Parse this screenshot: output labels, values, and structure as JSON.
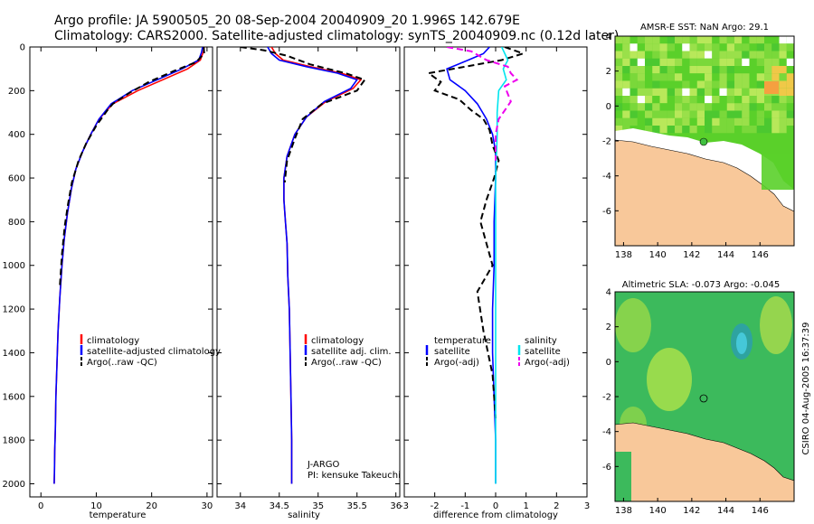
{
  "header": {
    "line1": "Argo profile: JA 5900505_20 08-Sep-2004 20040909_20 1.996S 142.679E",
    "line2": "Climatology: CARS2000. Satellite-adjusted climatology: synTS_20040909.nc (0.12d later)"
  },
  "side_label": "CSIRO 04-Aug-2005 16:37:39",
  "colors": {
    "climatology": "#ff0000",
    "satellite": "#0000ff",
    "argo": "#000000",
    "salinity_satellite": "#00e5ee",
    "salinity_argo": "#ee00ee",
    "land": "#f8c89a",
    "green": "#40c040"
  },
  "chart_data": [
    {
      "type": "line",
      "id": "temperature",
      "xlabel": "temperature",
      "ylabel": "",
      "xlim": [
        -2,
        31
      ],
      "ylim": [
        2060,
        0
      ],
      "xticks": [
        "0",
        "10",
        "20",
        "30"
      ],
      "xtick_values": [
        0,
        10,
        20,
        30
      ],
      "yticks": [
        "0",
        "200",
        "400",
        "600",
        "800",
        "1000",
        "1200",
        "1400",
        "1600",
        "1800",
        "2000"
      ],
      "ytick_values": [
        0,
        200,
        400,
        600,
        800,
        1000,
        1200,
        1400,
        1600,
        1800,
        2000
      ],
      "legend": [
        "climatology",
        "satellite-adjusted climatology",
        "Argo(..raw -QC)"
      ],
      "series": [
        {
          "name": "climatology",
          "style": "solid",
          "color": "#ff0000",
          "x": [
            29.5,
            29.3,
            28.8,
            26.5,
            22,
            17.5,
            13,
            10.5,
            9,
            7.5,
            6.3,
            5.5,
            4.8,
            4.2,
            3.8,
            3.4,
            3.1,
            2.9,
            2.7,
            2.6,
            2.5,
            2.45,
            2.4
          ],
          "y": [
            0,
            25,
            60,
            100,
            150,
            200,
            260,
            330,
            400,
            480,
            560,
            650,
            760,
            880,
            1000,
            1150,
            1300,
            1450,
            1600,
            1750,
            1850,
            1950,
            2000
          ]
        },
        {
          "name": "satellite-adjusted climatology",
          "style": "solid",
          "color": "#0000ff",
          "x": [
            29.2,
            29,
            28.5,
            25.5,
            21,
            16.5,
            12.7,
            10.5,
            9,
            7.5,
            6.3,
            5.5,
            4.8,
            4.2,
            3.8,
            3.4,
            3.1,
            2.9,
            2.7,
            2.6,
            2.5,
            2.45,
            2.4
          ],
          "y": [
            0,
            25,
            60,
            100,
            150,
            200,
            260,
            330,
            400,
            480,
            560,
            650,
            760,
            880,
            1000,
            1150,
            1300,
            1450,
            1600,
            1750,
            1850,
            1950,
            2000
          ]
        },
        {
          "name": "Argo(..raw -QC)",
          "style": "dashed",
          "color": "#000000",
          "x": [
            29.4,
            29.5,
            28,
            24,
            19.5,
            16,
            13,
            12,
            10,
            8.2,
            6.8,
            5.6,
            4.9,
            4.3,
            3.8,
            3.4
          ],
          "y": [
            0,
            30,
            70,
            110,
            160,
            210,
            260,
            290,
            360,
            440,
            520,
            620,
            720,
            820,
            950,
            1100
          ]
        }
      ]
    },
    {
      "type": "line",
      "id": "salinity",
      "xlabel": "salinity",
      "xlim": [
        33.7,
        36.05
      ],
      "ylim": [
        2060,
        0
      ],
      "xticks": [
        "34",
        "34.5",
        "35",
        "35.5",
        "36"
      ],
      "xtick_values": [
        34,
        34.5,
        35,
        35.5,
        36
      ],
      "legend": [
        "climatology",
        "satellite adj. clim.",
        "Argo(..raw -QC)"
      ],
      "annotations": [
        "J-ARGO",
        "PI: kensuke Takeuchi"
      ],
      "series": [
        {
          "name": "climatology",
          "style": "solid",
          "color": "#ff0000",
          "x": [
            34.4,
            34.45,
            34.55,
            34.9,
            35.3,
            35.55,
            35.45,
            35.1,
            34.85,
            34.7,
            34.6,
            34.56,
            34.56,
            34.58,
            34.6,
            34.61,
            34.63,
            34.64,
            34.65,
            34.66,
            34.66
          ],
          "y": [
            0,
            30,
            60,
            90,
            120,
            150,
            190,
            250,
            320,
            400,
            500,
            600,
            700,
            800,
            900,
            1050,
            1200,
            1400,
            1600,
            1800,
            2000
          ]
        },
        {
          "name": "satellite adj. clim.",
          "style": "solid",
          "color": "#0000ff",
          "x": [
            34.35,
            34.4,
            34.5,
            34.85,
            35.25,
            35.5,
            35.42,
            35.08,
            34.85,
            34.7,
            34.6,
            34.56,
            34.56,
            34.58,
            34.6,
            34.61,
            34.63,
            34.64,
            34.65,
            34.66,
            34.66
          ],
          "y": [
            0,
            30,
            60,
            90,
            120,
            150,
            190,
            250,
            320,
            400,
            500,
            600,
            700,
            800,
            900,
            1050,
            1200,
            1400,
            1600,
            1800,
            2000
          ]
        },
        {
          "name": "Argo(..raw -QC)",
          "style": "dashed",
          "color": "#000000",
          "x": [
            34.0,
            34.3,
            34.6,
            34.9,
            35.35,
            35.6,
            35.5,
            35.05,
            34.8,
            34.7,
            34.6,
            34.57
          ],
          "y": [
            0,
            15,
            40,
            80,
            120,
            150,
            200,
            260,
            330,
            420,
            520,
            620
          ]
        }
      ]
    },
    {
      "type": "line",
      "id": "difference",
      "xlabel": "difference from climatology",
      "xlim": [
        -3,
        3
      ],
      "ylim": [
        2060,
        0
      ],
      "xticks": [
        "-3",
        "-2",
        "-1",
        "0",
        "1",
        "2",
        "3"
      ],
      "xtick_values": [
        -3,
        -2,
        -1,
        0,
        1,
        2,
        3
      ],
      "legend_left_title": "temperature",
      "legend_right_title": "salinity",
      "legend_left": [
        "satellite",
        "Argo(-adj)"
      ],
      "legend_right": [
        "satellite",
        "Argo(-adj)"
      ],
      "series": [
        {
          "name": "temperature satellite",
          "style": "solid",
          "color": "#0000ff",
          "x": [
            -0.2,
            -0.4,
            -0.9,
            -1.6,
            -1.5,
            -1.0,
            -0.6,
            -0.3,
            -0.1,
            0,
            0,
            -0.05,
            -0.05,
            -0.1,
            -0.1,
            -0.05,
            0,
            0
          ],
          "y": [
            0,
            30,
            60,
            100,
            150,
            200,
            260,
            330,
            400,
            480,
            600,
            800,
            1000,
            1200,
            1400,
            1600,
            1800,
            2000
          ]
        },
        {
          "name": "temperature Argo(-adj)",
          "style": "dashed",
          "color": "#000000",
          "x": [
            0.3,
            0.9,
            0.2,
            -1.0,
            -2.2,
            -1.8,
            -2.0,
            -1.2,
            -0.8,
            -0.4,
            -0.2,
            -0.1,
            0.1,
            -0.05,
            -0.3,
            -0.5,
            -0.3,
            -0.1,
            -0.6,
            -0.4,
            -0.1,
            0
          ],
          "y": [
            0,
            30,
            60,
            90,
            120,
            160,
            200,
            240,
            290,
            330,
            380,
            450,
            520,
            600,
            700,
            800,
            900,
            1000,
            1120,
            1300,
            1500,
            1700
          ]
        },
        {
          "name": "salinity satellite",
          "style": "solid",
          "color": "#00e5ee",
          "x": [
            0.2,
            0.4,
            0.25,
            0.35,
            0.1,
            0.05,
            0.05,
            0,
            0,
            0,
            0,
            0,
            0
          ],
          "y": [
            0,
            60,
            100,
            150,
            200,
            300,
            400,
            600,
            800,
            1000,
            1400,
            1800,
            2000
          ]
        },
        {
          "name": "salinity Argo(-adj)",
          "style": "dashed",
          "color": "#ee00ee",
          "x": [
            -1.6,
            -0.8,
            -0.3,
            0.4,
            0.5,
            0.7,
            0.3,
            0.5,
            0.1,
            0,
            0
          ],
          "y": [
            0,
            20,
            60,
            90,
            120,
            150,
            180,
            250,
            330,
            400,
            520
          ]
        }
      ]
    },
    {
      "type": "heatmap",
      "id": "sst-map",
      "title": "AMSR-E SST: NaN Argo: 29.1",
      "xlim": [
        137.5,
        148
      ],
      "ylim": [
        -8,
        4
      ],
      "xticks": [
        "138",
        "140",
        "142",
        "144",
        "146"
      ],
      "xtick_values": [
        138,
        140,
        142,
        144,
        146
      ],
      "yticks": [
        "4",
        "2",
        "0",
        "-2",
        "-4",
        "-6"
      ],
      "ytick_values": [
        4,
        2,
        0,
        -2,
        -4,
        -6
      ],
      "argo_position": {
        "lon": 142.679,
        "lat": -1.996
      }
    },
    {
      "type": "heatmap",
      "id": "sla-map",
      "title": "Altimetric SLA: -0.073 Argo: -0.045",
      "xlim": [
        137.5,
        148
      ],
      "ylim": [
        -8,
        4
      ],
      "xticks": [
        "138",
        "140",
        "142",
        "144",
        "146"
      ],
      "xtick_values": [
        138,
        140,
        142,
        144,
        146
      ],
      "yticks": [
        "4",
        "2",
        "0",
        "-2",
        "-4",
        "-6"
      ],
      "ytick_values": [
        4,
        2,
        0,
        -2,
        -4,
        -6
      ],
      "argo_position": {
        "lon": 142.679,
        "lat": -1.996
      }
    }
  ]
}
